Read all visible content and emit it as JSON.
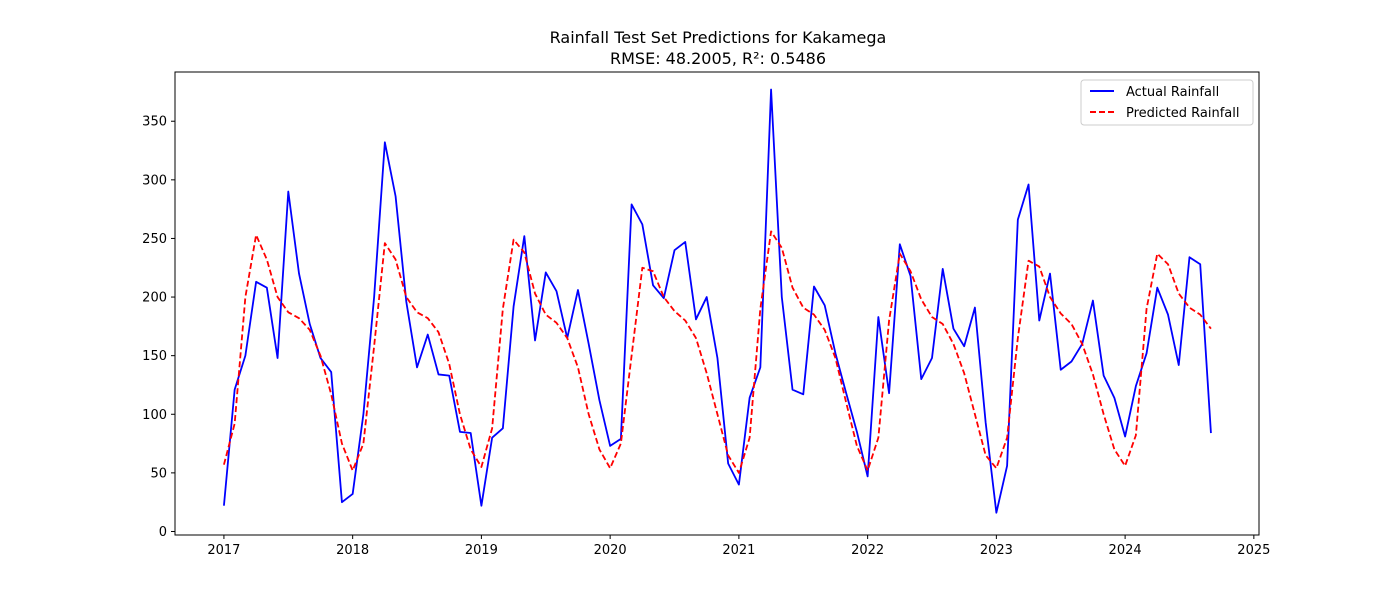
{
  "chart_data": {
    "type": "line",
    "title": "Rainfall Test Set Predictions for Kakamega",
    "subtitle": "RMSE: 48.2005, R²: 0.5486",
    "xlabel": "",
    "ylabel": "",
    "x_is_date": true,
    "xlim": [
      2016.62,
      2025.04
    ],
    "ylim": [
      -3,
      392
    ],
    "x_ticks": [
      2017,
      2018,
      2019,
      2020,
      2021,
      2022,
      2023,
      2024,
      2025
    ],
    "x_tick_labels": [
      "2017",
      "2018",
      "2019",
      "2020",
      "2021",
      "2022",
      "2023",
      "2024",
      "2025"
    ],
    "y_ticks": [
      0,
      50,
      100,
      150,
      200,
      250,
      300,
      350
    ],
    "y_tick_labels": [
      "0",
      "50",
      "100",
      "150",
      "200",
      "250",
      "300",
      "350"
    ],
    "grid": false,
    "legend_position": "top-right",
    "start_year": 2017,
    "series": [
      {
        "name": "Actual Rainfall",
        "color": "#0000ff",
        "style": "solid",
        "values": [
          22,
          121,
          150,
          213,
          208,
          148,
          290,
          220,
          177,
          148,
          136,
          25,
          32,
          100,
          200,
          332,
          286,
          196,
          140,
          168,
          134,
          133,
          85,
          84,
          22,
          80,
          88,
          192,
          252,
          163,
          221,
          205,
          165,
          206,
          160,
          112,
          73,
          79,
          279,
          262,
          210,
          199,
          240,
          247,
          181,
          200,
          148,
          58,
          40,
          114,
          140,
          377,
          200,
          121,
          117,
          209,
          193,
          152,
          118,
          85,
          47,
          183,
          118,
          245,
          218,
          130,
          148,
          224,
          173,
          158,
          191,
          93,
          16,
          56,
          266,
          296,
          180,
          220,
          138,
          145,
          160,
          197,
          133,
          114,
          81,
          124,
          152,
          208,
          185,
          142,
          234,
          228,
          84
        ]
      },
      {
        "name": "Predicted Rainfall",
        "color": "#ff0000",
        "style": "dashed",
        "values": [
          57,
          92,
          200,
          253,
          232,
          200,
          187,
          182,
          172,
          150,
          117,
          75,
          52,
          75,
          158,
          246,
          232,
          200,
          187,
          182,
          170,
          143,
          100,
          70,
          55,
          88,
          190,
          249,
          238,
          203,
          185,
          178,
          165,
          140,
          100,
          70,
          54,
          75,
          150,
          225,
          222,
          200,
          188,
          180,
          165,
          135,
          100,
          65,
          50,
          80,
          190,
          256,
          242,
          208,
          191,
          185,
          172,
          148,
          110,
          73,
          52,
          80,
          180,
          237,
          222,
          198,
          183,
          177,
          160,
          135,
          100,
          65,
          54,
          80,
          165,
          231,
          226,
          200,
          186,
          177,
          160,
          134,
          100,
          70,
          56,
          82,
          190,
          237,
          228,
          203,
          191,
          185,
          173
        ]
      }
    ]
  }
}
